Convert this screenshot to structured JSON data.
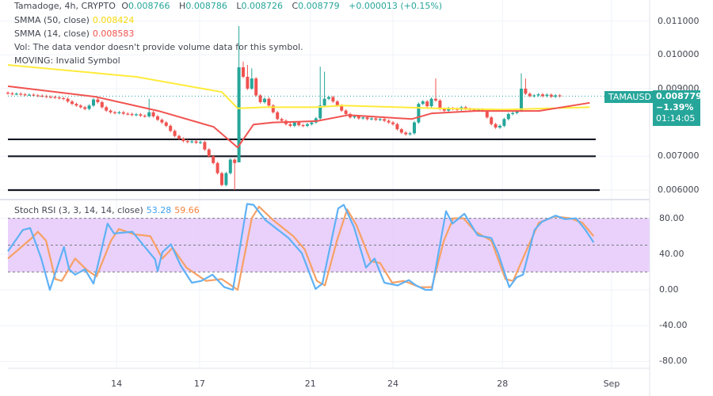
{
  "header": {
    "symbol": "Tamadoge, 4h, CRYPTO",
    "o_label": "O",
    "o_value": "0.008766",
    "h_label": "H",
    "h_value": "0.008786",
    "l_label": "L",
    "l_value": "0.008726",
    "c_label": "C",
    "c_value": "0.008779",
    "change": "+0.000013 (+0.15%)"
  },
  "indicators": {
    "smma50": {
      "label": "SMMA (50, close)",
      "value": "0.008424",
      "color": "#ffeb3b"
    },
    "smma14": {
      "label": "SMMA (14, close)",
      "value": "0.008583",
      "color": "#f05350"
    },
    "vol": "Vol: The data vendor doesn't provide volume data for this symbol.",
    "moving": "MOVING: Invalid Symbol"
  },
  "price_tag": {
    "symbol": "TAMAUSD",
    "price": "0.008779",
    "change_pct": "−1.39%",
    "countdown": "01:14:05",
    "color": "#26a69a"
  },
  "colors": {
    "up": "#26a69a",
    "down": "#ef5350",
    "stoch_k": "#5fb1f5",
    "stoch_d": "#f7a165",
    "stoch_band": "#e7ccfb"
  },
  "chart_data": [
    {
      "type": "candlestick",
      "price_ticks": [
        "0.011000",
        "0.010000",
        "0.009000",
        "0.007000",
        "0.006000"
      ],
      "ylim": [
        0.0059,
        0.0114
      ],
      "date_ticks": [
        {
          "label": "14",
          "bar": 25.4
        },
        {
          "label": "17",
          "bar": 44.8
        },
        {
          "label": "21",
          "bar": 70.7
        },
        {
          "label": "24",
          "bar": 90
        },
        {
          "label": "28",
          "bar": 115.6
        },
        {
          "label": "Sep",
          "bar": 141.1
        }
      ],
      "horizontal_levels": [
        0.0075,
        0.007,
        0.006
      ],
      "last_price": 0.008779,
      "closes": [
        0.00886,
        0.00884,
        0.00885,
        0.00883,
        0.00882,
        0.00882,
        0.0088,
        0.00879,
        0.00878,
        0.00876,
        0.00875,
        0.00874,
        0.00872,
        0.0087,
        0.00862,
        0.00855,
        0.0085,
        0.00845,
        0.0084,
        0.0085,
        0.00868,
        0.0086,
        0.00845,
        0.00835,
        0.0083,
        0.00828,
        0.0083,
        0.00826,
        0.00825,
        0.00822,
        0.00824,
        0.0082,
        0.00818,
        0.0083,
        0.00818,
        0.00808,
        0.008,
        0.0079,
        0.00775,
        0.0076,
        0.00752,
        0.00745,
        0.00742,
        0.00744,
        0.0074,
        0.00742,
        0.0072,
        0.007,
        0.0068,
        0.0065,
        0.00615,
        0.0065,
        0.0069,
        0.0068,
        0.00963,
        0.00935,
        0.009,
        0.0093,
        0.0088,
        0.0086,
        0.0087,
        0.0085,
        0.0083,
        0.0081,
        0.00805,
        0.00795,
        0.0079,
        0.008,
        0.00792,
        0.0079,
        0.00795,
        0.008,
        0.00812,
        0.0085,
        0.0087,
        0.00875,
        0.00862,
        0.0085,
        0.00835,
        0.00825,
        0.00815,
        0.00818,
        0.00812,
        0.00815,
        0.0081,
        0.00812,
        0.00808,
        0.0081,
        0.00805,
        0.008,
        0.00795,
        0.0078,
        0.0077,
        0.00765,
        0.00768,
        0.008,
        0.00855,
        0.00862,
        0.00848,
        0.0087,
        0.00865,
        0.0084,
        0.00835,
        0.00842,
        0.0084,
        0.00838,
        0.00845,
        0.0084,
        0.00838,
        0.00836,
        0.00838,
        0.00835,
        0.00815,
        0.00795,
        0.00785,
        0.0079,
        0.0081,
        0.00825,
        0.00828,
        0.00835,
        0.009,
        0.00885,
        0.00878,
        0.0088,
        0.00883,
        0.00878,
        0.00882,
        0.00876,
        0.0088,
        0.00878
      ],
      "notable_highs": [
        {
          "bar": 33,
          "high": 0.0087
        },
        {
          "bar": 54,
          "high": 0.01085
        },
        {
          "bar": 55,
          "high": 0.0098
        },
        {
          "bar": 56,
          "high": 0.0097
        },
        {
          "bar": 57,
          "high": 0.0096
        },
        {
          "bar": 73,
          "high": 0.00965
        },
        {
          "bar": 74,
          "high": 0.0095
        },
        {
          "bar": 100,
          "high": 0.0093
        },
        {
          "bar": 120,
          "high": 0.00945
        },
        {
          "bar": 121,
          "high": 0.0093
        }
      ],
      "notable_lows": [
        {
          "bar": 53,
          "low": 0.006
        },
        {
          "bar": 54,
          "low": 0.0071
        }
      ],
      "smma50": [
        [
          0,
          0.0097
        ],
        [
          30,
          0.00935
        ],
        [
          50,
          0.0089
        ],
        [
          53.7,
          0.00842
        ],
        [
          60,
          0.00845
        ],
        [
          72,
          0.00845
        ],
        [
          78,
          0.0085
        ],
        [
          100,
          0.00842
        ],
        [
          116,
          0.00838
        ],
        [
          136,
          0.00845
        ]
      ],
      "smma14": [
        [
          0,
          0.00907
        ],
        [
          20.4,
          0.00876
        ],
        [
          35.2,
          0.00834
        ],
        [
          48.1,
          0.00787
        ],
        [
          53.7,
          0.00726
        ],
        [
          57.4,
          0.00794
        ],
        [
          62,
          0.008
        ],
        [
          72.2,
          0.00804
        ],
        [
          79.6,
          0.00822
        ],
        [
          94.4,
          0.0081
        ],
        [
          99.1,
          0.00827
        ],
        [
          109.3,
          0.00834
        ],
        [
          124.1,
          0.00834
        ],
        [
          136,
          0.00858
        ]
      ]
    },
    {
      "type": "line",
      "title": "Stoch RSI (3, 3, 14, 14, close)",
      "k_value": "53.28",
      "d_value": "59.66",
      "y_ticks": [
        "80.00",
        "40.00",
        "0.00",
        "-40.00",
        "-80.00"
      ],
      "ylim": [
        -90,
        100
      ],
      "band": [
        20,
        80
      ],
      "midline": 50,
      "series": [
        {
          "values": [
            [
              0,
              43
            ],
            [
              3.5,
              67
            ],
            [
              5.2,
              69
            ],
            [
              7.8,
              35
            ],
            [
              9.8,
              0
            ],
            [
              13.1,
              48
            ],
            [
              14.3,
              23
            ],
            [
              15.7,
              17
            ],
            [
              18,
              23
            ],
            [
              20,
              7
            ],
            [
              23.3,
              74
            ],
            [
              24.8,
              63
            ],
            [
              29.1,
              65
            ],
            [
              34.4,
              34
            ],
            [
              35,
              21
            ],
            [
              36.1,
              42
            ],
            [
              38.1,
              51
            ],
            [
              40.4,
              27
            ],
            [
              43,
              8
            ],
            [
              45.2,
              10
            ],
            [
              47.8,
              17
            ],
            [
              50.6,
              3
            ],
            [
              52.6,
              0
            ],
            [
              55.9,
              96
            ],
            [
              57.4,
              95
            ],
            [
              60.2,
              78
            ],
            [
              65.6,
              58
            ],
            [
              68.7,
              41
            ],
            [
              71.9,
              1
            ],
            [
              73.5,
              7
            ],
            [
              77.2,
              91
            ],
            [
              78.5,
              95
            ],
            [
              80.9,
              70
            ],
            [
              83.7,
              25
            ],
            [
              85.7,
              35
            ],
            [
              88,
              8
            ],
            [
              91.1,
              5
            ],
            [
              93.7,
              11
            ],
            [
              95.4,
              5
            ],
            [
              97.6,
              0
            ],
            [
              99.1,
              0
            ],
            [
              102.4,
              88
            ],
            [
              103.9,
              74
            ],
            [
              106.7,
              85
            ],
            [
              109.8,
              61
            ],
            [
              113,
              58
            ],
            [
              114.6,
              41
            ],
            [
              117.2,
              3
            ],
            [
              118.9,
              14
            ],
            [
              120.4,
              17
            ],
            [
              123.1,
              67
            ],
            [
              124.8,
              76
            ],
            [
              128,
              83
            ],
            [
              130.2,
              79
            ],
            [
              132.8,
              80
            ],
            [
              135,
              67
            ],
            [
              136.9,
              53
            ]
          ]
        },
        {
          "values": [
            [
              0,
              35
            ],
            [
              5.6,
              58
            ],
            [
              7,
              65
            ],
            [
              8.9,
              55
            ],
            [
              11.1,
              12
            ],
            [
              12.6,
              10
            ],
            [
              15.7,
              35
            ],
            [
              18.5,
              22
            ],
            [
              20.7,
              15
            ],
            [
              24.1,
              55
            ],
            [
              25.9,
              68
            ],
            [
              29.6,
              62
            ],
            [
              33.3,
              60
            ],
            [
              36.1,
              35
            ],
            [
              38.5,
              47
            ],
            [
              41.7,
              25
            ],
            [
              46.3,
              10
            ],
            [
              50,
              12
            ],
            [
              53.7,
              0
            ],
            [
              57,
              80
            ],
            [
              58.7,
              93
            ],
            [
              62,
              78
            ],
            [
              66.7,
              60
            ],
            [
              69.4,
              45
            ],
            [
              72.2,
              10
            ],
            [
              74.1,
              5
            ],
            [
              76.9,
              55
            ],
            [
              79.3,
              90
            ],
            [
              81.5,
              72
            ],
            [
              84.8,
              32
            ],
            [
              87,
              30
            ],
            [
              89.8,
              8
            ],
            [
              92.6,
              10
            ],
            [
              96.3,
              3
            ],
            [
              99.1,
              3
            ],
            [
              101.9,
              55
            ],
            [
              104.1,
              80
            ],
            [
              106.5,
              80
            ],
            [
              109.3,
              65
            ],
            [
              113,
              55
            ],
            [
              116.3,
              12
            ],
            [
              118.1,
              10
            ],
            [
              121.3,
              45
            ],
            [
              124.1,
              75
            ],
            [
              127.8,
              82
            ],
            [
              131.5,
              80
            ],
            [
              134.3,
              75
            ],
            [
              136.9,
              60
            ]
          ]
        }
      ]
    }
  ]
}
